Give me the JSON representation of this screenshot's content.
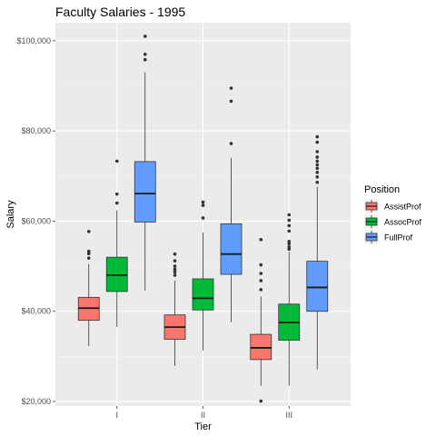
{
  "chart_data": {
    "type": "box",
    "title": "Faculty Salaries - 1995",
    "xlabel": "Tier",
    "ylabel": "Salary",
    "ylim": [
      19000,
      104000
    ],
    "y_ticks": [
      20000,
      40000,
      60000,
      80000,
      100000
    ],
    "y_tick_labels": [
      "$20,000",
      "$40,000",
      "$60,000",
      "$80,000",
      "$100,000"
    ],
    "categories": [
      "I",
      "II",
      "III"
    ],
    "grid": true,
    "legend": {
      "title": "Position",
      "position": "right"
    },
    "series": [
      {
        "name": "AssistProf",
        "color": "#F8766D",
        "boxes": [
          {
            "category": "I",
            "whisker_low": 32300,
            "q1": 38000,
            "median": 40700,
            "q3": 43100,
            "whisker_high": 50500,
            "outliers": [
              51800,
              52800,
              53300,
              57700
            ]
          },
          {
            "category": "II",
            "whisker_low": 27900,
            "q1": 33800,
            "median": 36500,
            "q3": 39200,
            "whisker_high": 46800,
            "outliers": [
              48000,
              48700,
              49300,
              50000,
              51200,
              52700
            ]
          },
          {
            "category": "III",
            "whisker_low": 23500,
            "q1": 29300,
            "median": 31900,
            "q3": 34900,
            "whisker_high": 43300,
            "outliers": [
              20100,
              44800,
              46800,
              48400,
              50300,
              55900
            ]
          }
        ]
      },
      {
        "name": "AssocProf",
        "color": "#00BA38",
        "boxes": [
          {
            "category": "I",
            "whisker_low": 36500,
            "q1": 44400,
            "median": 48000,
            "q3": 52000,
            "whisker_high": 62400,
            "outliers": [
              64000,
              66000,
              73300
            ]
          },
          {
            "category": "II",
            "whisker_low": 31300,
            "q1": 40300,
            "median": 42900,
            "q3": 47200,
            "whisker_high": 57500,
            "outliers": [
              60700,
              63500,
              64200
            ]
          },
          {
            "category": "III",
            "whisker_low": 23500,
            "q1": 33600,
            "median": 37500,
            "q3": 41600,
            "whisker_high": 53200,
            "outliers": [
              53800,
              54300,
              55000,
              55500,
              57800,
              59000,
              60200,
              61400
            ]
          }
        ]
      },
      {
        "name": "FullProf",
        "color": "#619CFF",
        "boxes": [
          {
            "category": "I",
            "whisker_low": 44600,
            "q1": 59800,
            "median": 66100,
            "q3": 73200,
            "whisker_high": 93000,
            "outliers": [
              95800,
              97000,
              101000
            ]
          },
          {
            "category": "II",
            "whisker_low": 37600,
            "q1": 48200,
            "median": 52700,
            "q3": 59400,
            "whisker_high": 74000,
            "outliers": [
              77200,
              86600,
              89500
            ]
          },
          {
            "category": "III",
            "whisker_low": 27100,
            "q1": 40000,
            "median": 45300,
            "q3": 51100,
            "whisker_high": 67600,
            "outliers": [
              68600,
              69800,
              70800,
              71700,
              72500,
              73300,
              74200,
              75400,
              77500,
              78700
            ]
          }
        ]
      }
    ]
  }
}
